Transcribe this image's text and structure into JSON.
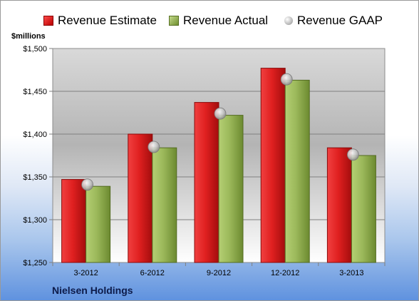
{
  "legend": {
    "estimate": "Revenue Estimate",
    "actual": "Revenue Actual",
    "gaap": "Revenue GAAP"
  },
  "unit_label": "$millions",
  "company": "Nielsen Holdings",
  "colors": {
    "estimate": "#d41919",
    "actual": "#8fac4a",
    "gaap": "#c8c8c8"
  },
  "chart_data": {
    "type": "bar",
    "categories": [
      "3-2012",
      "6-2012",
      "9-2012",
      "12-2012",
      "3-2013"
    ],
    "series": [
      {
        "name": "Revenue Estimate",
        "values": [
          1347,
          1400,
          1437,
          1477,
          1384
        ]
      },
      {
        "name": "Revenue Actual",
        "values": [
          1339,
          1384,
          1422,
          1463,
          1375
        ]
      },
      {
        "name": "Revenue GAAP",
        "marker": "circle",
        "values": [
          1341,
          1385,
          1424,
          1464,
          1376
        ]
      }
    ],
    "yticks": [
      "$1,250",
      "$1,300",
      "$1,350",
      "$1,400",
      "$1,450",
      "$1,500"
    ],
    "ylim": [
      1250,
      1500
    ],
    "grid": true,
    "legend_position": "top"
  }
}
